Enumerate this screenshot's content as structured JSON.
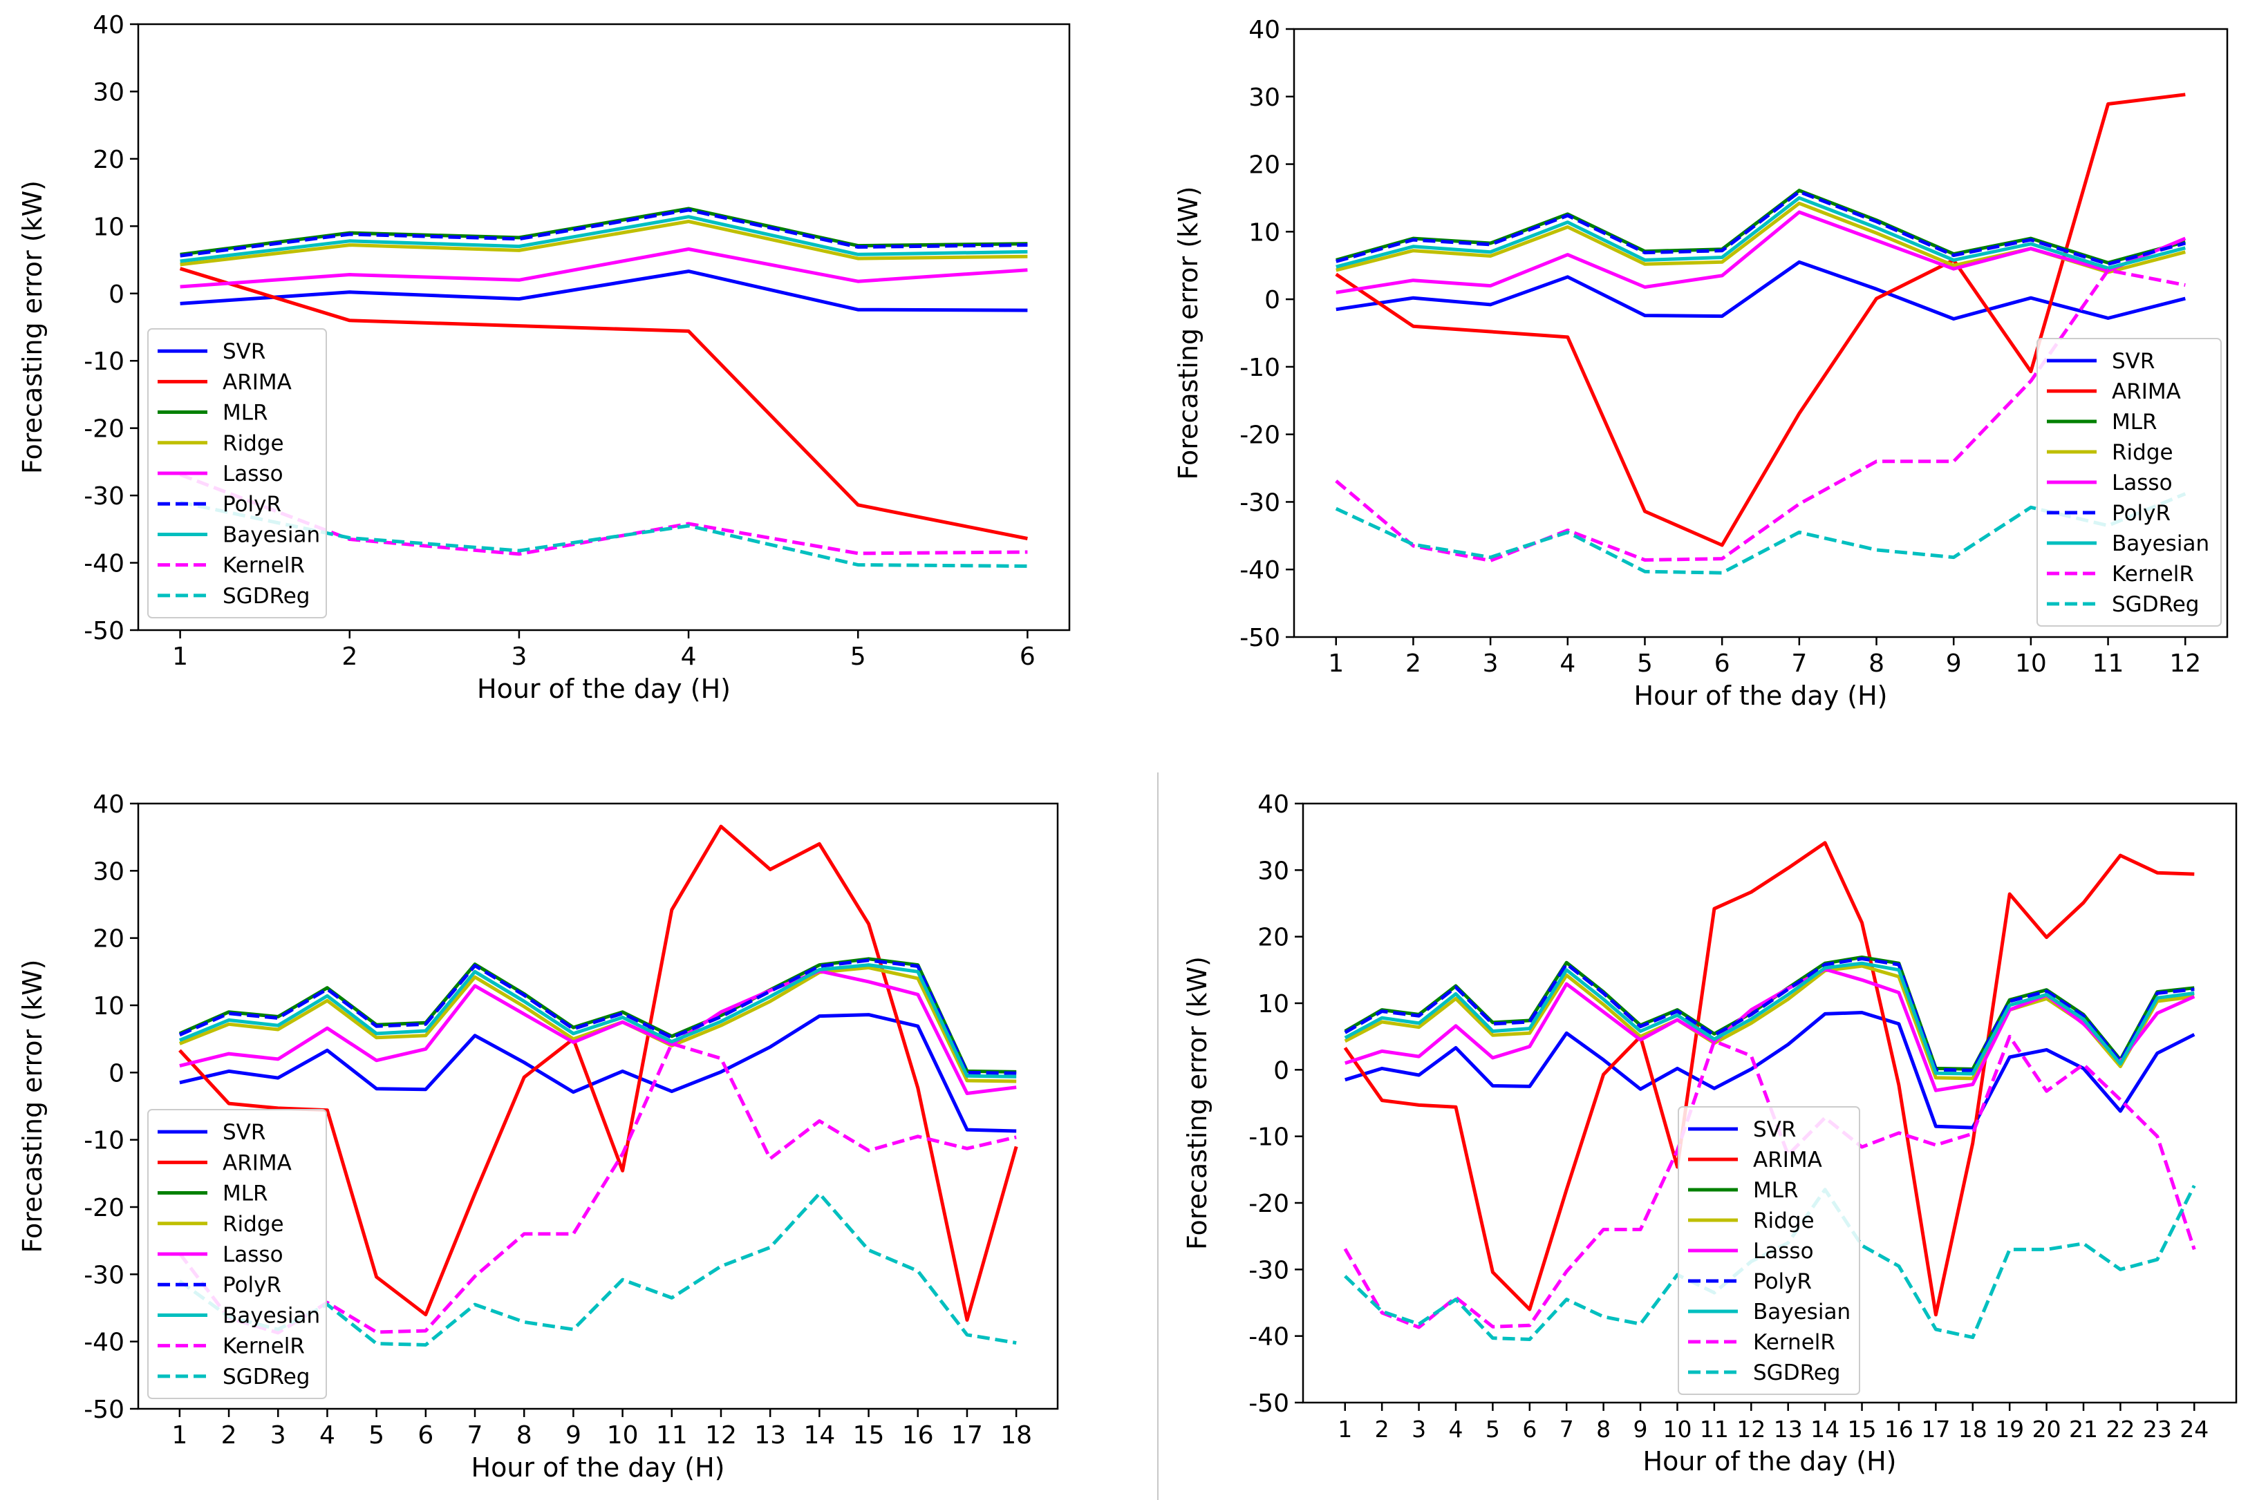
{
  "figure": {
    "divider_color": "#c8c8c8"
  },
  "chart_data": [
    {
      "type": "line",
      "xlabel": "Hour of the day (H)",
      "ylabel": "Forecasting error (kW)",
      "x": [
        1,
        2,
        3,
        4,
        5,
        6
      ],
      "ylim": [
        -50,
        40
      ],
      "yticks": [
        -50,
        -40,
        -30,
        -20,
        -10,
        0,
        10,
        20,
        30,
        40
      ],
      "legend": "center-left",
      "series": [
        {
          "name": "SVR",
          "color": "#0000ff",
          "dash": "solid",
          "values": [
            -1.5,
            0.2,
            -0.8,
            3.3,
            -2.4,
            -2.5
          ]
        },
        {
          "name": "ARIMA",
          "color": "#ff0000",
          "dash": "solid",
          "values": [
            3.7,
            -4.0,
            -4.8,
            -5.6,
            -31.4,
            -36.4
          ]
        },
        {
          "name": "MLR",
          "color": "#008000",
          "dash": "solid",
          "values": [
            5.8,
            9.0,
            8.3,
            12.6,
            7.1,
            7.4
          ]
        },
        {
          "name": "Ridge",
          "color": "#bfbf00",
          "dash": "solid",
          "values": [
            4.3,
            7.2,
            6.4,
            10.7,
            5.2,
            5.5
          ]
        },
        {
          "name": "Lasso",
          "color": "#ff00ff",
          "dash": "solid",
          "values": [
            1.0,
            2.8,
            2.0,
            6.6,
            1.8,
            3.5
          ]
        },
        {
          "name": "PolyR",
          "color": "#0000ff",
          "dash": "dashed",
          "values": [
            5.6,
            8.8,
            8.1,
            12.4,
            6.9,
            7.2
          ]
        },
        {
          "name": "Bayesian",
          "color": "#00bfbf",
          "dash": "solid",
          "values": [
            4.8,
            7.8,
            7.0,
            11.4,
            5.8,
            6.2
          ]
        },
        {
          "name": "KernelR",
          "color": "#ff00ff",
          "dash": "dashed",
          "values": [
            -26.9,
            -36.5,
            -38.7,
            -34.2,
            -38.6,
            -38.4
          ]
        },
        {
          "name": "SGDReg",
          "color": "#00bfbf",
          "dash": "dashed",
          "values": [
            -31.0,
            -36.3,
            -38.2,
            -34.5,
            -40.3,
            -40.5
          ]
        }
      ]
    },
    {
      "type": "line",
      "xlabel": "Hour of the day (H)",
      "ylabel": "Forecasting error (kW)",
      "x": [
        1,
        2,
        3,
        4,
        5,
        6,
        7,
        8,
        9,
        10,
        11,
        12
      ],
      "ylim": [
        -50,
        40
      ],
      "yticks": [
        -50,
        -40,
        -30,
        -20,
        -10,
        0,
        10,
        20,
        30,
        40
      ],
      "legend": "lower-right",
      "series": [
        {
          "name": "SVR",
          "color": "#0000ff",
          "dash": "solid",
          "values": [
            -1.5,
            0.2,
            -0.8,
            3.3,
            -2.4,
            -2.5,
            5.5,
            1.5,
            -2.9,
            0.2,
            -2.8,
            0.1
          ]
        },
        {
          "name": "ARIMA",
          "color": "#ff0000",
          "dash": "solid",
          "values": [
            3.7,
            -4.0,
            -4.8,
            -5.6,
            -31.4,
            -36.4,
            -16.9,
            0.1,
            5.8,
            -10.7,
            28.9,
            30.3
          ]
        },
        {
          "name": "MLR",
          "color": "#008000",
          "dash": "solid",
          "values": [
            5.8,
            9.0,
            8.3,
            12.6,
            7.1,
            7.4,
            16.1,
            11.7,
            6.7,
            9.0,
            5.4,
            8.5
          ]
        },
        {
          "name": "Ridge",
          "color": "#bfbf00",
          "dash": "solid",
          "values": [
            4.3,
            7.2,
            6.4,
            10.7,
            5.2,
            5.5,
            14.2,
            9.8,
            5.0,
            7.5,
            4.0,
            7.0
          ]
        },
        {
          "name": "Lasso",
          "color": "#ff00ff",
          "dash": "solid",
          "values": [
            1.0,
            2.8,
            2.0,
            6.6,
            1.8,
            3.5,
            12.9,
            8.7,
            4.5,
            7.5,
            4.2,
            9.0
          ]
        },
        {
          "name": "PolyR",
          "color": "#0000ff",
          "dash": "dashed",
          "values": [
            5.6,
            8.8,
            8.1,
            12.4,
            6.9,
            7.2,
            15.9,
            11.5,
            6.5,
            8.8,
            5.2,
            8.3
          ]
        },
        {
          "name": "Bayesian",
          "color": "#00bfbf",
          "dash": "solid",
          "values": [
            4.8,
            7.8,
            7.0,
            11.4,
            5.8,
            6.2,
            15.0,
            10.6,
            5.8,
            8.2,
            4.6,
            7.6
          ]
        },
        {
          "name": "KernelR",
          "color": "#ff00ff",
          "dash": "dashed",
          "values": [
            -26.9,
            -36.5,
            -38.7,
            -34.2,
            -38.6,
            -38.4,
            -30.3,
            -24.0,
            -24.0,
            -12.1,
            4.3,
            2.1
          ]
        },
        {
          "name": "SGDReg",
          "color": "#00bfbf",
          "dash": "dashed",
          "values": [
            -31.0,
            -36.3,
            -38.2,
            -34.5,
            -40.3,
            -40.5,
            -34.5,
            -37.1,
            -38.2,
            -30.8,
            -33.5,
            -28.8
          ]
        }
      ]
    },
    {
      "type": "line",
      "xlabel": "Hour of the day (H)",
      "ylabel": "Forecasting error (kW)",
      "x": [
        1,
        2,
        3,
        4,
        5,
        6,
        7,
        8,
        9,
        10,
        11,
        12,
        13,
        14,
        15,
        16,
        17,
        18
      ],
      "ylim": [
        -50,
        40
      ],
      "yticks": [
        -50,
        -40,
        -30,
        -20,
        -10,
        0,
        10,
        20,
        30,
        40
      ],
      "legend": "lower-left",
      "series": [
        {
          "name": "SVR",
          "color": "#0000ff",
          "dash": "solid",
          "values": [
            -1.5,
            0.2,
            -0.8,
            3.3,
            -2.4,
            -2.5,
            5.5,
            1.5,
            -2.9,
            0.2,
            -2.8,
            0.1,
            3.8,
            8.4,
            8.6,
            6.9,
            -8.5,
            -8.7
          ]
        },
        {
          "name": "ARIMA",
          "color": "#ff0000",
          "dash": "solid",
          "values": [
            3.3,
            -4.6,
            -5.3,
            -5.6,
            -30.4,
            -36.0,
            -18.0,
            -0.7,
            5.0,
            -14.6,
            24.2,
            36.6,
            30.2,
            34.0,
            22.1,
            -2.3,
            -36.8,
            -11.0
          ]
        },
        {
          "name": "MLR",
          "color": "#008000",
          "dash": "solid",
          "values": [
            5.8,
            9.0,
            8.3,
            12.6,
            7.1,
            7.4,
            16.1,
            11.7,
            6.7,
            9.0,
            5.4,
            8.5,
            12.3,
            16.0,
            16.9,
            16.0,
            0.2,
            0.1
          ]
        },
        {
          "name": "Ridge",
          "color": "#bfbf00",
          "dash": "solid",
          "values": [
            4.3,
            7.2,
            6.4,
            10.7,
            5.2,
            5.5,
            14.2,
            9.8,
            5.0,
            7.5,
            4.0,
            7.0,
            10.6,
            14.9,
            15.6,
            14.0,
            -1.2,
            -1.3
          ]
        },
        {
          "name": "Lasso",
          "color": "#ff00ff",
          "dash": "solid",
          "values": [
            1.0,
            2.8,
            2.0,
            6.6,
            1.8,
            3.5,
            12.9,
            8.7,
            4.5,
            7.5,
            4.2,
            9.0,
            12.2,
            15.1,
            13.5,
            11.6,
            -3.1,
            -2.2
          ]
        },
        {
          "name": "PolyR",
          "color": "#0000ff",
          "dash": "dashed",
          "values": [
            5.6,
            8.8,
            8.1,
            12.4,
            6.9,
            7.2,
            15.9,
            11.5,
            6.5,
            8.8,
            5.2,
            8.3,
            12.1,
            15.8,
            16.7,
            15.8,
            0.0,
            -0.1
          ]
        },
        {
          "name": "Bayesian",
          "color": "#00bfbf",
          "dash": "solid",
          "values": [
            4.8,
            7.8,
            7.0,
            11.4,
            5.8,
            6.2,
            15.0,
            10.6,
            5.8,
            8.2,
            4.6,
            7.6,
            11.3,
            15.3,
            16.0,
            15.0,
            -0.5,
            -0.6
          ]
        },
        {
          "name": "KernelR",
          "color": "#ff00ff",
          "dash": "dashed",
          "values": [
            -26.9,
            -36.5,
            -38.7,
            -34.2,
            -38.6,
            -38.4,
            -30.3,
            -24.0,
            -24.0,
            -12.1,
            4.3,
            2.1,
            -12.8,
            -7.2,
            -11.6,
            -9.5,
            -11.3,
            -9.6
          ]
        },
        {
          "name": "SGDReg",
          "color": "#00bfbf",
          "dash": "dashed",
          "values": [
            -31.0,
            -36.3,
            -38.2,
            -34.5,
            -40.3,
            -40.5,
            -34.5,
            -37.1,
            -38.2,
            -30.8,
            -33.5,
            -28.8,
            -26.0,
            -18.0,
            -26.4,
            -29.5,
            -39.0,
            -40.2
          ]
        }
      ]
    },
    {
      "type": "line",
      "xlabel": "Hour of the day (H)",
      "ylabel": "Forecasting error (kW)",
      "x": [
        1,
        2,
        3,
        4,
        5,
        6,
        7,
        8,
        9,
        10,
        11,
        12,
        13,
        14,
        15,
        16,
        17,
        18,
        19,
        20,
        21,
        22,
        23,
        24
      ],
      "ylim": [
        -50,
        40
      ],
      "yticks": [
        -50,
        -40,
        -30,
        -20,
        -10,
        0,
        10,
        20,
        30,
        40
      ],
      "legend": "lower-center",
      "series": [
        {
          "name": "SVR",
          "color": "#0000ff",
          "dash": "solid",
          "values": [
            -1.5,
            0.2,
            -0.8,
            3.3,
            -2.4,
            -2.5,
            5.5,
            1.5,
            -2.9,
            0.2,
            -2.8,
            0.1,
            3.8,
            8.4,
            8.6,
            6.9,
            -8.5,
            -8.7,
            1.9,
            3.0,
            0.2,
            -6.2,
            2.5,
            5.3
          ]
        },
        {
          "name": "ARIMA",
          "color": "#ff0000",
          "dash": "solid",
          "values": [
            3.3,
            -4.6,
            -5.3,
            -5.6,
            -30.4,
            -36.0,
            -18.0,
            -0.7,
            5.0,
            -14.6,
            24.2,
            26.7,
            30.3,
            34.1,
            22.1,
            -2.3,
            -36.8,
            -11.0,
            26.4,
            19.9,
            25.1,
            32.2,
            29.6,
            29.4
          ]
        },
        {
          "name": "MLR",
          "color": "#008000",
          "dash": "solid",
          "values": [
            5.8,
            9.0,
            8.3,
            12.6,
            7.1,
            7.4,
            16.1,
            11.7,
            6.7,
            9.0,
            5.4,
            8.5,
            12.3,
            16.0,
            16.9,
            16.0,
            0.2,
            0.1,
            10.5,
            12.0,
            8.3,
            1.5,
            11.7,
            12.3
          ]
        },
        {
          "name": "Ridge",
          "color": "#bfbf00",
          "dash": "solid",
          "values": [
            4.3,
            7.2,
            6.4,
            10.7,
            5.2,
            5.5,
            14.2,
            9.8,
            5.0,
            7.5,
            4.0,
            7.0,
            10.6,
            14.9,
            15.6,
            14.0,
            -1.2,
            -1.3,
            9.0,
            10.7,
            7.0,
            0.5,
            10.3,
            11.0
          ]
        },
        {
          "name": "Lasso",
          "color": "#ff00ff",
          "dash": "solid",
          "values": [
            1.0,
            2.8,
            2.0,
            6.6,
            1.8,
            3.5,
            12.9,
            8.7,
            4.5,
            7.5,
            4.2,
            9.0,
            12.2,
            15.1,
            13.5,
            11.6,
            -3.1,
            -2.2,
            9.0,
            11.2,
            6.9,
            1.3,
            8.5,
            11.0
          ]
        },
        {
          "name": "PolyR",
          "color": "#0000ff",
          "dash": "dashed",
          "values": [
            5.6,
            8.8,
            8.1,
            12.4,
            6.9,
            7.2,
            15.9,
            11.5,
            6.5,
            8.8,
            5.2,
            8.3,
            12.1,
            15.8,
            16.7,
            15.8,
            0.0,
            -0.1,
            10.3,
            11.8,
            8.1,
            1.3,
            11.5,
            12.1
          ]
        },
        {
          "name": "Bayesian",
          "color": "#00bfbf",
          "dash": "solid",
          "values": [
            4.8,
            7.8,
            7.0,
            11.4,
            5.8,
            6.2,
            15.0,
            10.6,
            5.8,
            8.2,
            4.6,
            7.6,
            11.3,
            15.3,
            16.0,
            15.0,
            -0.5,
            -0.6,
            9.7,
            11.3,
            7.6,
            0.9,
            10.8,
            11.5
          ]
        },
        {
          "name": "KernelR",
          "color": "#ff00ff",
          "dash": "dashed",
          "values": [
            -26.9,
            -36.5,
            -38.7,
            -34.2,
            -38.6,
            -38.4,
            -30.3,
            -24.0,
            -24.0,
            -12.1,
            4.3,
            2.1,
            -12.8,
            -7.2,
            -11.6,
            -9.5,
            -11.3,
            -9.6,
            5.0,
            -3.2,
            0.8,
            -4.5,
            -10.0,
            -27.0
          ]
        },
        {
          "name": "SGDReg",
          "color": "#00bfbf",
          "dash": "dashed",
          "values": [
            -31.0,
            -36.3,
            -38.2,
            -34.5,
            -40.3,
            -40.5,
            -34.5,
            -37.1,
            -38.2,
            -30.8,
            -33.5,
            -28.8,
            -26.0,
            -18.0,
            -26.4,
            -29.5,
            -39.0,
            -40.2,
            -27.0,
            -27.0,
            -26.1,
            -30.0,
            -28.5,
            -17.4
          ]
        }
      ]
    }
  ]
}
